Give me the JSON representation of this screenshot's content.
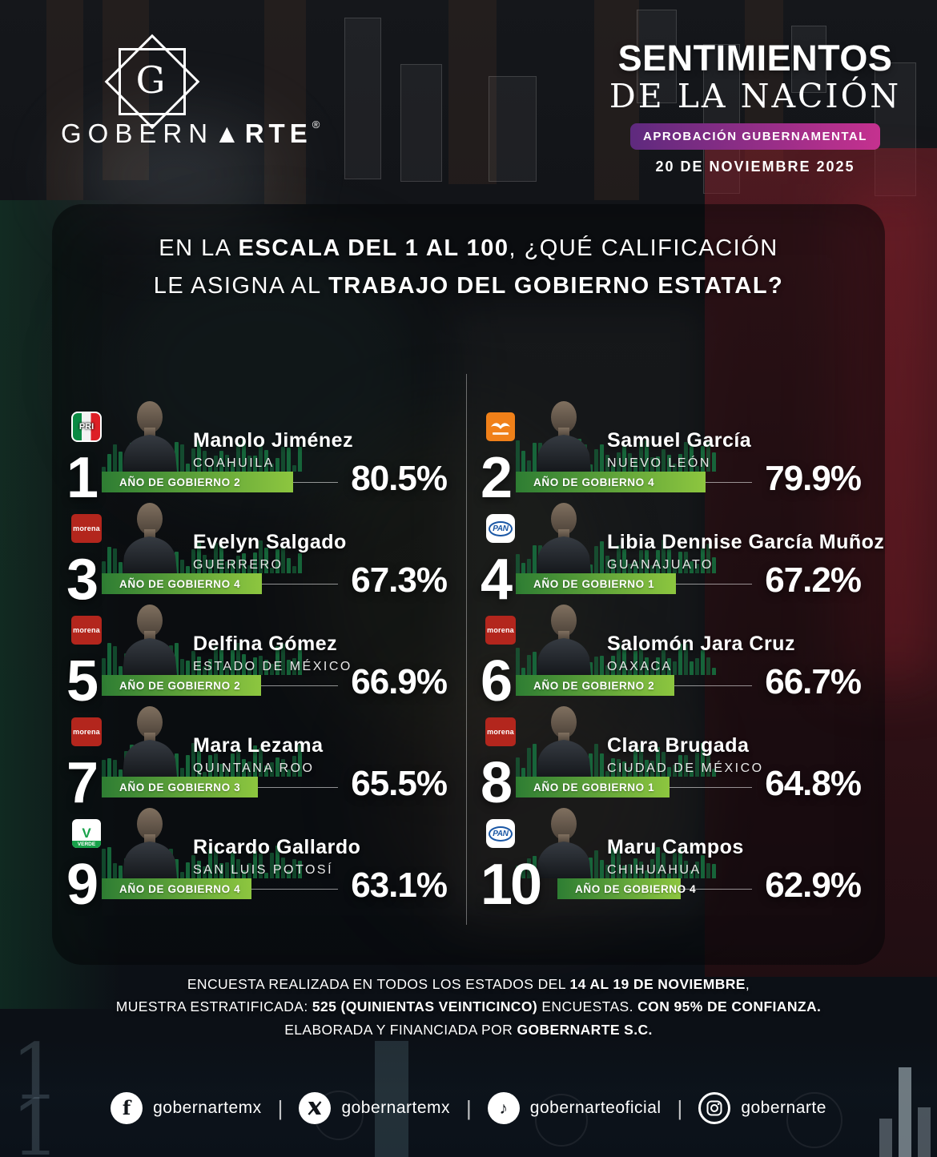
{
  "header": {
    "brand_name_light": "GOBERN",
    "brand_triangle": "▲",
    "brand_name_bold": "RTE",
    "brand_registered": "®",
    "logo_letter": "G",
    "title_line1": "SENTIMIENTOS",
    "title_line2": "DE LA NACIÓN",
    "badge": "APROBACIÓN GUBERNAMENTAL",
    "date": "20 DE NOVIEMBRE 2025"
  },
  "question": {
    "line1": [
      {
        "t": "EN LA ",
        "b": false
      },
      {
        "t": "ESCALA DEL 1 AL 100",
        "b": true
      },
      {
        "t": ", ¿QUÉ CALIFICACIÓN",
        "b": false
      }
    ],
    "line2": [
      {
        "t": "LE ASIGNA AL ",
        "b": false
      },
      {
        "t": "TRABAJO DEL GOBIERNO ESTATAL?",
        "b": true
      }
    ]
  },
  "governors": [
    {
      "rank": "1",
      "name": "Manolo Jiménez",
      "state": "COAHUILA",
      "party": "PRI",
      "year_label": "AÑO DE GOBIERNO 2",
      "value": 80.5,
      "pct_label": "80.5%"
    },
    {
      "rank": "2",
      "name": "Samuel García",
      "state": "NUEVO LEÓN",
      "party": "MC",
      "year_label": "AÑO DE GOBIERNO 4",
      "value": 79.9,
      "pct_label": "79.9%"
    },
    {
      "rank": "3",
      "name": "Evelyn Salgado",
      "state": "GUERRERO",
      "party": "MORENA",
      "year_label": "AÑO DE GOBIERNO 4",
      "value": 67.3,
      "pct_label": "67.3%"
    },
    {
      "rank": "4",
      "name": "Libia Dennise García Muñoz",
      "state": "GUANAJUATO",
      "party": "PAN",
      "year_label": "AÑO DE GOBIERNO 1",
      "value": 67.2,
      "pct_label": "67.2%"
    },
    {
      "rank": "5",
      "name": "Delfina Gómez",
      "state": "ESTADO DE MÉXICO",
      "party": "MORENA",
      "year_label": "AÑO DE GOBIERNO 2",
      "value": 66.9,
      "pct_label": "66.9%"
    },
    {
      "rank": "6",
      "name": "Salomón Jara Cruz",
      "state": "OAXACA",
      "party": "MORENA",
      "year_label": "AÑO DE GOBIERNO 2",
      "value": 66.7,
      "pct_label": "66.7%"
    },
    {
      "rank": "7",
      "name": "Mara Lezama",
      "state": "QUINTANA ROO",
      "party": "MORENA",
      "year_label": "AÑO DE GOBIERNO 3",
      "value": 65.5,
      "pct_label": "65.5%"
    },
    {
      "rank": "8",
      "name": "Clara Brugada",
      "state": "CIUDAD DE MÉXICO",
      "party": "MORENA",
      "year_label": "AÑO DE GOBIERNO 1",
      "value": 64.8,
      "pct_label": "64.8%"
    },
    {
      "rank": "9",
      "name": "Ricardo Gallardo",
      "state": "SAN LUIS POTOSÍ",
      "party": "VERDE",
      "year_label": "AÑO DE GOBIERNO 4",
      "value": 63.1,
      "pct_label": "63.1%"
    },
    {
      "rank": "10",
      "name": "Maru Campos",
      "state": "CHIHUAHUA",
      "party": "PAN",
      "year_label": "AÑO DE GOBIERNO 4",
      "value": 62.9,
      "pct_label": "62.9%"
    }
  ],
  "party_labels": {
    "PRI": "PRI",
    "MORENA": "morena",
    "PAN": "PAN",
    "VERDE": "VERDE",
    "VERDE_V": "V"
  },
  "footnote": {
    "line1": [
      {
        "t": "ENCUESTA REALIZADA EN TODOS LOS ESTADOS DEL ",
        "b": false
      },
      {
        "t": "14 AL 19 DE NOVIEMBRE",
        "b": true
      },
      {
        "t": ",",
        "b": false
      }
    ],
    "line2": [
      {
        "t": "MUESTRA ESTRATIFICADA: ",
        "b": false
      },
      {
        "t": "525 (QUINIENTAS VEINTICINCO)",
        "b": true
      },
      {
        "t": " ENCUESTAS. ",
        "b": false
      },
      {
        "t": "CON 95% DE CONFIANZA.",
        "b": true
      }
    ],
    "line3": [
      {
        "t": "ELABORADA Y FINANCIADA POR ",
        "b": false
      },
      {
        "t": "GOBERNARTE S.C.",
        "b": true
      }
    ]
  },
  "social": [
    {
      "network": "facebook",
      "handle": "gobernartemx"
    },
    {
      "network": "x",
      "handle": "gobernartemx"
    },
    {
      "network": "tiktok",
      "handle": "gobernarteoficial"
    },
    {
      "network": "instagram",
      "handle": "gobernarte"
    }
  ],
  "colors": {
    "bar_gradient_start": "#2e7d33",
    "bar_gradient_end": "#8dc63f",
    "eq_bar": "#17693c",
    "badge_gradient_start": "#5e2a7e",
    "badge_gradient_end": "#c5318f",
    "parties": {
      "PRI_stripes": [
        "#0a8a43",
        "#f2f2f2",
        "#dd1f26"
      ],
      "MC": "#f08019",
      "MORENA": "#b3261d",
      "PAN": "#1a57a5",
      "VERDE": "#18a24a"
    }
  },
  "chart_data": {
    "type": "bar",
    "title": "EN LA ESCALA DEL 1 AL 100, ¿QUÉ CALIFICACIÓN LE ASIGNA AL TRABAJO DEL GOBIERNO ESTATAL?",
    "subtitle": "APROBACIÓN GUBERNAMENTAL — 20 DE NOVIEMBRE 2025",
    "unit": "%",
    "xlim": [
      0,
      100
    ],
    "grid": false,
    "legend": false,
    "orientation": "horizontal",
    "categories": [
      "Manolo Jiménez (Coahuila)",
      "Samuel García (Nuevo León)",
      "Evelyn Salgado (Guerrero)",
      "Libia Dennise García Muñoz (Guanajuato)",
      "Delfina Gómez (Estado de México)",
      "Salomón Jara Cruz (Oaxaca)",
      "Mara Lezama (Quintana Roo)",
      "Clara Brugada (Ciudad de México)",
      "Ricardo Gallardo (San Luis Potosí)",
      "Maru Campos (Chihuahua)"
    ],
    "values": [
      80.5,
      79.9,
      67.3,
      67.2,
      66.9,
      66.7,
      65.5,
      64.8,
      63.1,
      62.9
    ],
    "year_of_government": [
      2,
      4,
      4,
      1,
      2,
      2,
      3,
      1,
      4,
      4
    ],
    "parties": [
      "PRI",
      "MC",
      "MORENA",
      "PAN",
      "MORENA",
      "MORENA",
      "MORENA",
      "MORENA",
      "VERDE",
      "PAN"
    ],
    "ranks": [
      1,
      2,
      3,
      4,
      5,
      6,
      7,
      8,
      9,
      10
    ]
  }
}
